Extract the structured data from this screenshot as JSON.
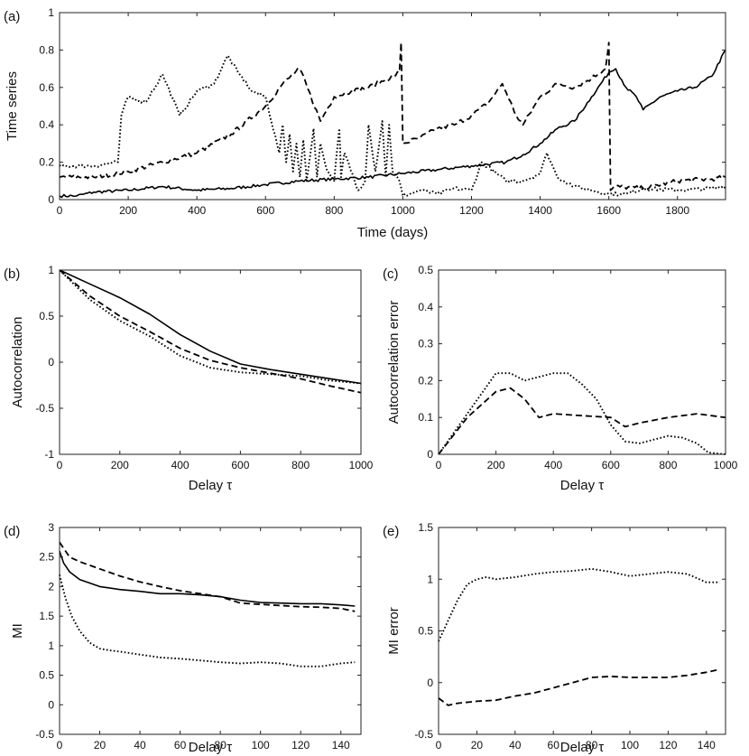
{
  "chart_data": [
    {
      "panel": "(a)",
      "type": "line",
      "xlabel": "Time (days)",
      "ylabel": "Time series",
      "xlim": [
        0,
        1940
      ],
      "ylim": [
        0,
        1
      ],
      "xticks": [
        0,
        200,
        400,
        600,
        800,
        1000,
        1200,
        1400,
        1600,
        1800
      ],
      "yticks": [
        0,
        0.2,
        0.4,
        0.6,
        0.8,
        1
      ],
      "ytick_labels": [
        "0",
        "0.2",
        "0.4",
        "0.6",
        "0.8",
        "1"
      ],
      "grid": false,
      "series": [
        {
          "style": "solid",
          "noise": 0.008,
          "x": [
            0,
            50,
            100,
            200,
            300,
            400,
            500,
            600,
            700,
            800,
            900,
            1000,
            1100,
            1200,
            1300,
            1350,
            1400,
            1450,
            1500,
            1550,
            1600,
            1620,
            1650,
            1680,
            1700,
            1750,
            1800,
            1850,
            1900,
            1940
          ],
          "y": [
            0.02,
            0.02,
            0.04,
            0.05,
            0.07,
            0.05,
            0.06,
            0.08,
            0.1,
            0.11,
            0.12,
            0.14,
            0.16,
            0.18,
            0.2,
            0.24,
            0.3,
            0.38,
            0.42,
            0.55,
            0.68,
            0.7,
            0.6,
            0.55,
            0.48,
            0.55,
            0.58,
            0.6,
            0.66,
            0.8
          ]
        },
        {
          "style": "dashed",
          "noise": 0.012,
          "x": [
            0,
            100,
            200,
            300,
            400,
            500,
            600,
            650,
            700,
            760,
            800,
            850,
            900,
            950,
            990,
            995,
            1000,
            1050,
            1100,
            1150,
            1200,
            1250,
            1290,
            1330,
            1350,
            1400,
            1450,
            1500,
            1550,
            1590,
            1600,
            1605,
            1620,
            1700,
            1800,
            1900,
            1940
          ],
          "y": [
            0.12,
            0.12,
            0.15,
            0.2,
            0.25,
            0.35,
            0.5,
            0.62,
            0.7,
            0.42,
            0.55,
            0.58,
            0.6,
            0.64,
            0.68,
            0.84,
            0.3,
            0.33,
            0.38,
            0.4,
            0.45,
            0.52,
            0.62,
            0.45,
            0.4,
            0.55,
            0.62,
            0.6,
            0.65,
            0.7,
            0.84,
            0.05,
            0.07,
            0.06,
            0.1,
            0.11,
            0.12
          ]
        },
        {
          "style": "dotted",
          "noise": 0.01,
          "x": [
            0,
            100,
            170,
            180,
            200,
            250,
            300,
            350,
            400,
            450,
            490,
            520,
            560,
            600,
            640,
            650,
            660,
            670,
            680,
            690,
            700,
            710,
            720,
            740,
            750,
            760,
            780,
            800,
            815,
            820,
            830,
            870,
            890,
            900,
            920,
            940,
            950,
            960,
            970,
            990,
            1000,
            1050,
            1100,
            1150,
            1200,
            1230,
            1300,
            1350,
            1400,
            1420,
            1450,
            1500,
            1550,
            1600,
            1650,
            1700,
            1800,
            1900,
            1940
          ],
          "y": [
            0.18,
            0.18,
            0.2,
            0.45,
            0.55,
            0.52,
            0.67,
            0.45,
            0.58,
            0.62,
            0.77,
            0.68,
            0.58,
            0.55,
            0.25,
            0.4,
            0.2,
            0.35,
            0.15,
            0.3,
            0.12,
            0.32,
            0.1,
            0.38,
            0.12,
            0.3,
            0.15,
            0.1,
            0.38,
            0.12,
            0.25,
            0.05,
            0.1,
            0.4,
            0.15,
            0.42,
            0.12,
            0.4,
            0.15,
            0.1,
            0.02,
            0.05,
            0.03,
            0.06,
            0.05,
            0.2,
            0.1,
            0.1,
            0.14,
            0.25,
            0.12,
            0.07,
            0.05,
            0.03,
            0.03,
            0.06,
            0.05,
            0.06,
            0.07
          ]
        }
      ]
    },
    {
      "panel": "(b)",
      "type": "line",
      "xlabel": "Delay τ",
      "ylabel": "Autocorrelation",
      "xlim": [
        0,
        1000
      ],
      "ylim": [
        -1,
        1
      ],
      "xticks": [
        0,
        200,
        400,
        600,
        800,
        1000
      ],
      "yticks": [
        -1,
        -0.5,
        0,
        0.5,
        1
      ],
      "ytick_labels": [
        "-1",
        "-0.5",
        "0",
        "0.5",
        "1"
      ],
      "grid": false,
      "series": [
        {
          "style": "solid",
          "x": [
            0,
            100,
            200,
            300,
            400,
            500,
            600,
            700,
            800,
            900,
            1000
          ],
          "y": [
            1,
            0.85,
            0.7,
            0.52,
            0.3,
            0.12,
            -0.02,
            -0.08,
            -0.13,
            -0.18,
            -0.23
          ]
        },
        {
          "style": "dashed",
          "x": [
            0,
            100,
            200,
            300,
            400,
            500,
            600,
            700,
            800,
            900,
            1000
          ],
          "y": [
            1,
            0.72,
            0.5,
            0.33,
            0.15,
            0.02,
            -0.06,
            -0.12,
            -0.18,
            -0.26,
            -0.33
          ]
        },
        {
          "style": "dotted",
          "x": [
            0,
            100,
            200,
            300,
            400,
            500,
            600,
            700,
            800,
            900,
            1000
          ],
          "y": [
            1,
            0.68,
            0.45,
            0.28,
            0.07,
            -0.06,
            -0.11,
            -0.13,
            -0.15,
            -0.2,
            -0.23
          ]
        }
      ]
    },
    {
      "panel": "(c)",
      "type": "line",
      "xlabel": "Delay τ",
      "ylabel": "Autocorrelation error",
      "xlim": [
        0,
        1000
      ],
      "ylim": [
        0,
        0.5
      ],
      "xticks": [
        0,
        200,
        400,
        600,
        800,
        1000
      ],
      "yticks": [
        0,
        0.1,
        0.2,
        0.3,
        0.4,
        0.5
      ],
      "ytick_labels": [
        "0",
        "0.1",
        "0.2",
        "0.3",
        "0.4",
        "0.5"
      ],
      "grid": false,
      "series": [
        {
          "style": "dashed",
          "x": [
            0,
            100,
            200,
            250,
            300,
            350,
            400,
            500,
            600,
            650,
            700,
            800,
            900,
            1000
          ],
          "y": [
            0,
            0.1,
            0.17,
            0.18,
            0.15,
            0.1,
            0.11,
            0.105,
            0.1,
            0.075,
            0.085,
            0.1,
            0.11,
            0.1
          ]
        },
        {
          "style": "dotted",
          "x": [
            0,
            100,
            200,
            250,
            300,
            350,
            400,
            450,
            500,
            550,
            600,
            650,
            700,
            750,
            800,
            850,
            900,
            940,
            1000
          ],
          "y": [
            0,
            0.11,
            0.22,
            0.22,
            0.2,
            0.21,
            0.22,
            0.22,
            0.19,
            0.15,
            0.08,
            0.035,
            0.03,
            0.04,
            0.05,
            0.045,
            0.03,
            0.005,
            0
          ]
        }
      ]
    },
    {
      "panel": "(d)",
      "type": "line",
      "xlabel": "Delay τ",
      "ylabel": "MI",
      "xlim": [
        0,
        150
      ],
      "ylim": [
        -0.5,
        3
      ],
      "xticks": [
        0,
        20,
        40,
        60,
        80,
        100,
        120,
        140
      ],
      "yticks": [
        -0.5,
        0,
        0.5,
        1,
        1.5,
        2,
        2.5,
        3
      ],
      "ytick_labels": [
        "-0.5",
        "0",
        "0.5",
        "1",
        "1.5",
        "2",
        "2.5",
        "3"
      ],
      "grid": false,
      "series": [
        {
          "style": "solid",
          "x": [
            0,
            2,
            5,
            10,
            20,
            30,
            40,
            50,
            60,
            70,
            80,
            90,
            100,
            110,
            120,
            130,
            140,
            147
          ],
          "y": [
            2.6,
            2.4,
            2.25,
            2.12,
            2.0,
            1.95,
            1.92,
            1.88,
            1.88,
            1.86,
            1.83,
            1.77,
            1.73,
            1.72,
            1.71,
            1.71,
            1.69,
            1.67
          ]
        },
        {
          "style": "dashed",
          "x": [
            0,
            5,
            10,
            20,
            30,
            40,
            50,
            60,
            70,
            80,
            90,
            100,
            110,
            120,
            130,
            140,
            147
          ],
          "y": [
            2.75,
            2.5,
            2.42,
            2.3,
            2.18,
            2.08,
            2.0,
            1.93,
            1.88,
            1.83,
            1.72,
            1.7,
            1.68,
            1.66,
            1.65,
            1.63,
            1.58
          ]
        },
        {
          "style": "dotted",
          "x": [
            0,
            3,
            6,
            10,
            15,
            20,
            25,
            30,
            40,
            50,
            60,
            70,
            80,
            90,
            100,
            110,
            120,
            130,
            140,
            147
          ],
          "y": [
            2.2,
            1.8,
            1.5,
            1.25,
            1.05,
            0.95,
            0.92,
            0.9,
            0.85,
            0.8,
            0.78,
            0.75,
            0.72,
            0.7,
            0.72,
            0.7,
            0.65,
            0.65,
            0.7,
            0.72
          ]
        }
      ]
    },
    {
      "panel": "(e)",
      "type": "line",
      "xlabel": "Delay τ",
      "ylabel": "MI error",
      "xlim": [
        0,
        150
      ],
      "ylim": [
        -0.5,
        1.5
      ],
      "xticks": [
        0,
        20,
        40,
        60,
        80,
        100,
        120,
        140
      ],
      "yticks": [
        -0.5,
        0,
        0.5,
        1,
        1.5
      ],
      "ytick_labels": [
        "-0.5",
        "0",
        "0.5",
        "1",
        "1.5"
      ],
      "grid": false,
      "series": [
        {
          "style": "dotted",
          "x": [
            0,
            5,
            10,
            15,
            20,
            25,
            30,
            40,
            50,
            60,
            70,
            80,
            90,
            100,
            110,
            120,
            130,
            140,
            147
          ],
          "y": [
            0.4,
            0.6,
            0.8,
            0.95,
            1.0,
            1.02,
            1.0,
            1.02,
            1.05,
            1.07,
            1.08,
            1.1,
            1.07,
            1.03,
            1.05,
            1.07,
            1.05,
            0.97,
            0.97
          ]
        },
        {
          "style": "dashed",
          "x": [
            0,
            5,
            10,
            20,
            30,
            40,
            50,
            60,
            70,
            80,
            90,
            100,
            110,
            120,
            130,
            140,
            145,
            147
          ],
          "y": [
            -0.15,
            -0.22,
            -0.2,
            -0.18,
            -0.17,
            -0.13,
            -0.1,
            -0.05,
            0.0,
            0.05,
            0.06,
            0.05,
            0.05,
            0.05,
            0.07,
            0.1,
            0.12,
            0.1
          ]
        }
      ]
    }
  ]
}
